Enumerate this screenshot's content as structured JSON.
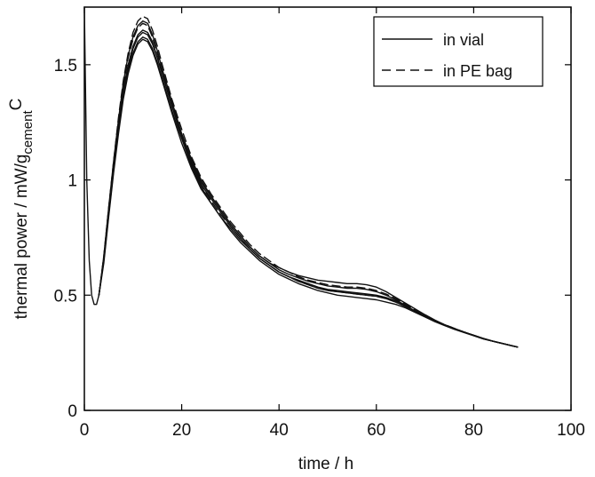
{
  "chart_data": {
    "type": "line",
    "xlabel": "time / h",
    "ylabel_main": "thermal power / mW/g",
    "ylabel_subscript": "cement",
    "ylabel_suffix": "C",
    "xlim": [
      0,
      100
    ],
    "ylim": [
      0,
      1.75
    ],
    "xticks": [
      0,
      20,
      40,
      60,
      80,
      100
    ],
    "xtick_labels": [
      "0",
      "20",
      "40",
      "60",
      "80",
      "100"
    ],
    "yticks": [
      0,
      0.5,
      1,
      1.5
    ],
    "ytick_labels": [
      "0",
      "0.5",
      "1",
      "1.5"
    ],
    "grid": false,
    "legend_position": "top-right",
    "legend": [
      {
        "label": "in vial",
        "style": "solid"
      },
      {
        "label": "in PE bag",
        "style": "dashed"
      }
    ],
    "colors": {
      "line": "#111111",
      "axes": "#000000",
      "background": "#ffffff"
    },
    "series": [
      {
        "style": "solid",
        "x": [
          0,
          0.5,
          1,
          1.5,
          2,
          2.5,
          3,
          4,
          5,
          6,
          7,
          8,
          9,
          10,
          11,
          12,
          13,
          14,
          15,
          16,
          18,
          20,
          22,
          24,
          26,
          28,
          30,
          32,
          34,
          36,
          38,
          40,
          42,
          44,
          46,
          48,
          50,
          52,
          54,
          56,
          58,
          60,
          62,
          64,
          66,
          68,
          70,
          72,
          74,
          76,
          78,
          80,
          82,
          84,
          86,
          88,
          89
        ],
        "y": [
          1.75,
          1.0,
          0.65,
          0.5,
          0.46,
          0.46,
          0.5,
          0.66,
          0.86,
          1.06,
          1.24,
          1.39,
          1.5,
          1.58,
          1.63,
          1.65,
          1.64,
          1.6,
          1.53,
          1.46,
          1.32,
          1.19,
          1.07,
          0.98,
          0.92,
          0.86,
          0.8,
          0.75,
          0.7,
          0.66,
          0.63,
          0.6,
          0.58,
          0.56,
          0.545,
          0.53,
          0.52,
          0.515,
          0.51,
          0.505,
          0.5,
          0.495,
          0.485,
          0.47,
          0.45,
          0.43,
          0.41,
          0.39,
          0.37,
          0.355,
          0.34,
          0.325,
          0.31,
          0.3,
          0.29,
          0.28,
          0.275
        ]
      },
      {
        "style": "solid",
        "x": [
          3,
          4,
          5,
          6,
          7,
          8,
          9,
          10,
          11,
          12,
          13,
          14,
          15,
          16,
          18,
          20,
          22,
          24,
          26,
          28,
          30,
          32,
          34,
          36,
          38,
          40,
          42,
          44,
          46,
          48,
          50,
          52,
          54,
          56,
          58,
          60,
          62,
          64,
          66,
          68,
          70,
          72,
          74,
          76,
          78,
          80,
          82,
          84,
          86,
          88,
          89
        ],
        "y": [
          0.5,
          0.64,
          0.84,
          1.03,
          1.2,
          1.35,
          1.46,
          1.54,
          1.59,
          1.61,
          1.6,
          1.56,
          1.5,
          1.43,
          1.29,
          1.16,
          1.05,
          0.96,
          0.9,
          0.84,
          0.78,
          0.73,
          0.69,
          0.65,
          0.62,
          0.59,
          0.57,
          0.55,
          0.535,
          0.52,
          0.51,
          0.5,
          0.495,
          0.49,
          0.485,
          0.48,
          0.47,
          0.46,
          0.445,
          0.425,
          0.405,
          0.385,
          0.368,
          0.352,
          0.338,
          0.324,
          0.31,
          0.3,
          0.29,
          0.28,
          0.275
        ]
      },
      {
        "style": "solid",
        "x": [
          3,
          4,
          5,
          6,
          7,
          8,
          9,
          10,
          11,
          12,
          13,
          14,
          15,
          16,
          18,
          20,
          22,
          24,
          26,
          28,
          30,
          32,
          34,
          36,
          38,
          40,
          42,
          44,
          46,
          48,
          50,
          52,
          54,
          56,
          58,
          60,
          62,
          64,
          66,
          68,
          70,
          72,
          74,
          76,
          78,
          80,
          82,
          84,
          86,
          88,
          89
        ],
        "y": [
          0.5,
          0.67,
          0.88,
          1.08,
          1.26,
          1.42,
          1.54,
          1.62,
          1.67,
          1.69,
          1.68,
          1.63,
          1.56,
          1.48,
          1.34,
          1.2,
          1.08,
          0.99,
          0.93,
          0.87,
          0.81,
          0.76,
          0.71,
          0.67,
          0.64,
          0.61,
          0.59,
          0.575,
          0.56,
          0.55,
          0.54,
          0.535,
          0.53,
          0.53,
          0.525,
          0.515,
          0.5,
          0.48,
          0.455,
          0.43,
          0.41,
          0.39,
          0.372,
          0.356,
          0.34,
          0.326,
          0.312,
          0.3,
          0.29,
          0.28,
          0.275
        ]
      },
      {
        "style": "solid",
        "x": [
          3,
          4,
          5,
          6,
          7,
          8,
          9,
          10,
          11,
          12,
          13,
          14,
          15,
          16,
          18,
          20,
          22,
          24,
          26,
          28,
          30,
          32,
          34,
          36,
          38,
          40,
          42,
          44,
          46,
          48,
          50,
          52,
          54,
          56,
          58,
          60,
          62,
          64,
          66,
          68,
          70,
          72,
          74,
          76,
          78,
          80,
          82,
          84,
          86,
          88,
          89
        ],
        "y": [
          0.5,
          0.65,
          0.85,
          1.04,
          1.22,
          1.37,
          1.48,
          1.55,
          1.6,
          1.62,
          1.61,
          1.57,
          1.51,
          1.44,
          1.3,
          1.18,
          1.06,
          0.97,
          0.9,
          0.84,
          0.79,
          0.74,
          0.7,
          0.66,
          0.63,
          0.6,
          0.58,
          0.565,
          0.55,
          0.535,
          0.525,
          0.52,
          0.515,
          0.51,
          0.505,
          0.5,
          0.49,
          0.475,
          0.455,
          0.43,
          0.41,
          0.39,
          0.37,
          0.354,
          0.34,
          0.325,
          0.311,
          0.3,
          0.29,
          0.28,
          0.275
        ]
      },
      {
        "style": "solid",
        "x": [
          3,
          4,
          5,
          6,
          7,
          8,
          9,
          10,
          11,
          12,
          13,
          14,
          15,
          16,
          18,
          20,
          22,
          24,
          26,
          28,
          30,
          32,
          34,
          36,
          38,
          40,
          42,
          44,
          46,
          48,
          50,
          52,
          54,
          56,
          58,
          60,
          62,
          64,
          66,
          68,
          70,
          72,
          74,
          76,
          78,
          80,
          82,
          84,
          86,
          88,
          89
        ],
        "y": [
          0.5,
          0.66,
          0.86,
          1.06,
          1.23,
          1.38,
          1.49,
          1.57,
          1.62,
          1.64,
          1.63,
          1.59,
          1.53,
          1.46,
          1.32,
          1.2,
          1.09,
          1.0,
          0.93,
          0.87,
          0.81,
          0.76,
          0.71,
          0.67,
          0.64,
          0.62,
          0.6,
          0.585,
          0.575,
          0.565,
          0.56,
          0.555,
          0.55,
          0.55,
          0.545,
          0.535,
          0.515,
          0.49,
          0.465,
          0.44,
          0.415,
          0.392,
          0.372,
          0.355,
          0.34,
          0.326,
          0.312,
          0.3,
          0.29,
          0.28,
          0.275
        ]
      },
      {
        "style": "dashed",
        "x": [
          3,
          4,
          5,
          6,
          7,
          8,
          9,
          10,
          11,
          12,
          13,
          14,
          15,
          16,
          18,
          20,
          22,
          24,
          26,
          28,
          30,
          32,
          34,
          36,
          38,
          40,
          42,
          44,
          46,
          48,
          50,
          52,
          54,
          56,
          58,
          60,
          62,
          64,
          66,
          68,
          70,
          72,
          74,
          76,
          78,
          80,
          82,
          84,
          86,
          88,
          89
        ],
        "y": [
          0.5,
          0.67,
          0.88,
          1.08,
          1.27,
          1.43,
          1.55,
          1.64,
          1.69,
          1.71,
          1.7,
          1.65,
          1.58,
          1.5,
          1.35,
          1.22,
          1.1,
          1.01,
          0.94,
          0.88,
          0.82,
          0.77,
          0.72,
          0.68,
          0.65,
          0.62,
          0.6,
          0.58,
          0.565,
          0.555,
          0.545,
          0.54,
          0.535,
          0.535,
          0.53,
          0.52,
          0.505,
          0.485,
          0.46,
          0.435,
          0.41,
          0.39,
          0.372,
          0.356,
          0.34,
          0.326,
          0.312,
          0.3,
          0.29,
          0.28,
          0.275
        ]
      },
      {
        "style": "dashed",
        "x": [
          3,
          4,
          5,
          6,
          7,
          8,
          9,
          10,
          11,
          12,
          13,
          14,
          15,
          16,
          18,
          20,
          22,
          24,
          26,
          28,
          30,
          32,
          34,
          36,
          38,
          40,
          42,
          44,
          46,
          48,
          50,
          52,
          54,
          56,
          58,
          60,
          62,
          64,
          66,
          68,
          70,
          72,
          74,
          76,
          78,
          80,
          82,
          84,
          86,
          88,
          89
        ],
        "y": [
          0.5,
          0.66,
          0.87,
          1.07,
          1.25,
          1.41,
          1.53,
          1.61,
          1.66,
          1.68,
          1.67,
          1.62,
          1.55,
          1.47,
          1.33,
          1.2,
          1.08,
          0.98,
          0.91,
          0.85,
          0.8,
          0.75,
          0.7,
          0.66,
          0.63,
          0.6,
          0.58,
          0.56,
          0.545,
          0.53,
          0.52,
          0.515,
          0.51,
          0.505,
          0.5,
          0.495,
          0.485,
          0.47,
          0.45,
          0.43,
          0.41,
          0.39,
          0.37,
          0.354,
          0.34,
          0.325,
          0.311,
          0.3,
          0.29,
          0.28,
          0.275
        ]
      }
    ]
  }
}
